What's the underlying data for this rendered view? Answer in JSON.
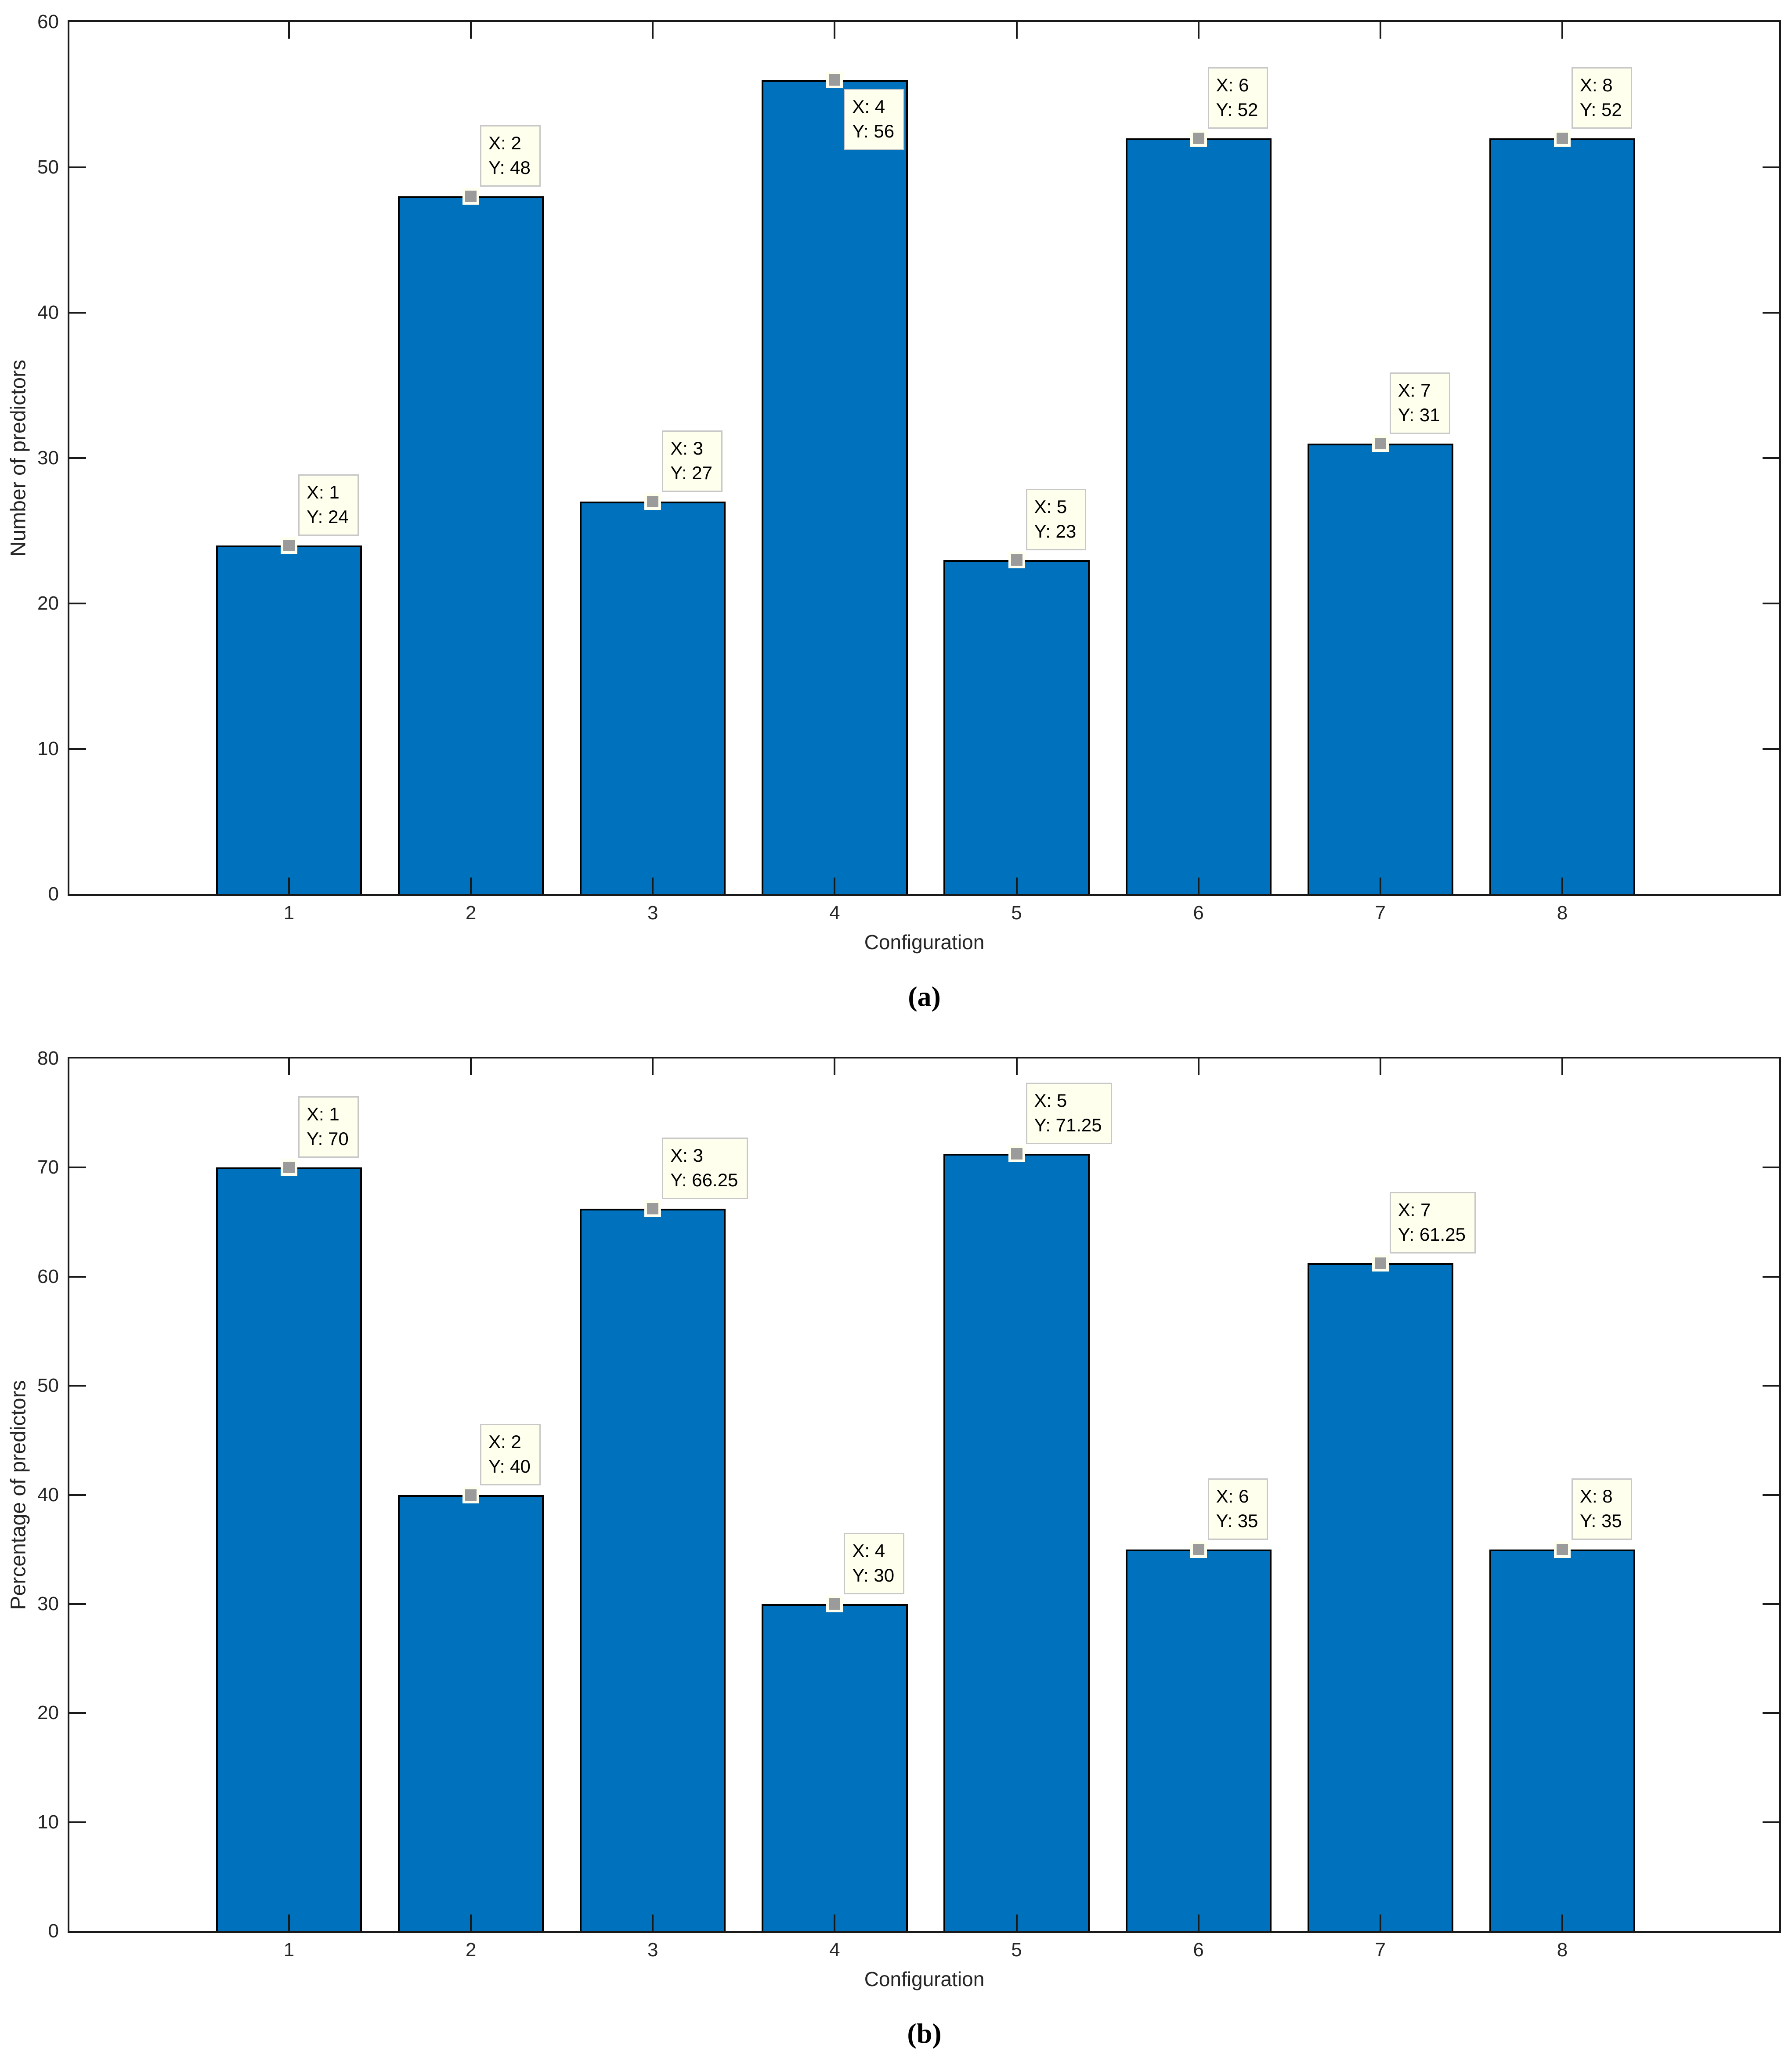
{
  "figure": {
    "background": "#FFFFFF"
  },
  "colors": {
    "bar": "#0072BD",
    "bar_edge": "#000000",
    "axis": "#1A1A1A",
    "text": "#262626",
    "tip_background": "#FFFFEE",
    "tip_border": "#C8C8C8",
    "marker_fill": "#9B9B9B",
    "marker_border": "#FFFFF0"
  },
  "chart_data": [
    {
      "id": "a",
      "type": "bar",
      "title": "",
      "xlabel": "Configuration",
      "ylabel": "Number of predictors",
      "caption": "(a)",
      "categories": [
        "1",
        "2",
        "3",
        "4",
        "5",
        "6",
        "7",
        "8"
      ],
      "values": [
        24,
        48,
        27,
        56,
        23,
        52,
        31,
        52
      ],
      "ylim": [
        0,
        60
      ],
      "yticks": [
        0,
        10,
        20,
        30,
        40,
        50,
        60
      ],
      "grid": false,
      "legend": null,
      "bar_color": "#0072BD",
      "annotations": [
        {
          "x": 1,
          "y": 24,
          "lines": [
            "X: 1",
            "Y: 24"
          ],
          "placement": "above"
        },
        {
          "x": 2,
          "y": 48,
          "lines": [
            "X: 2",
            "Y: 48"
          ],
          "placement": "above"
        },
        {
          "x": 3,
          "y": 27,
          "lines": [
            "X: 3",
            "Y: 27"
          ],
          "placement": "above"
        },
        {
          "x": 4,
          "y": 56,
          "lines": [
            "X: 4",
            "Y: 56"
          ],
          "placement": "below"
        },
        {
          "x": 5,
          "y": 23,
          "lines": [
            "X: 5",
            "Y: 23"
          ],
          "placement": "above"
        },
        {
          "x": 6,
          "y": 52,
          "lines": [
            "X: 6",
            "Y: 52"
          ],
          "placement": "above"
        },
        {
          "x": 7,
          "y": 31,
          "lines": [
            "X: 7",
            "Y: 31"
          ],
          "placement": "above"
        },
        {
          "x": 8,
          "y": 52,
          "lines": [
            "X: 8",
            "Y: 52"
          ],
          "placement": "above"
        }
      ]
    },
    {
      "id": "b",
      "type": "bar",
      "title": "",
      "xlabel": "Configuration",
      "ylabel": "Percentage of predictors",
      "caption": "(b)",
      "categories": [
        "1",
        "2",
        "3",
        "4",
        "5",
        "6",
        "7",
        "8"
      ],
      "values": [
        70,
        40,
        66.25,
        30,
        71.25,
        35,
        61.25,
        35
      ],
      "ylim": [
        0,
        80
      ],
      "yticks": [
        0,
        10,
        20,
        30,
        40,
        50,
        60,
        70,
        80
      ],
      "grid": false,
      "legend": null,
      "bar_color": "#0072BD",
      "annotations": [
        {
          "x": 1,
          "y": 70,
          "lines": [
            "X: 1",
            "Y: 70"
          ],
          "placement": "above"
        },
        {
          "x": 2,
          "y": 40,
          "lines": [
            "X: 2",
            "Y: 40"
          ],
          "placement": "above"
        },
        {
          "x": 3,
          "y": 66.25,
          "lines": [
            "X: 3",
            "Y: 66.25"
          ],
          "placement": "above"
        },
        {
          "x": 4,
          "y": 30,
          "lines": [
            "X: 4",
            "Y: 30"
          ],
          "placement": "above"
        },
        {
          "x": 5,
          "y": 71.25,
          "lines": [
            "X: 5",
            "Y: 71.25"
          ],
          "placement": "above"
        },
        {
          "x": 6,
          "y": 35,
          "lines": [
            "X: 6",
            "Y: 35"
          ],
          "placement": "above"
        },
        {
          "x": 7,
          "y": 61.25,
          "lines": [
            "X: 7",
            "Y: 61.25"
          ],
          "placement": "above"
        },
        {
          "x": 8,
          "y": 35,
          "lines": [
            "X: 8",
            "Y: 35"
          ],
          "placement": "above"
        }
      ]
    }
  ]
}
